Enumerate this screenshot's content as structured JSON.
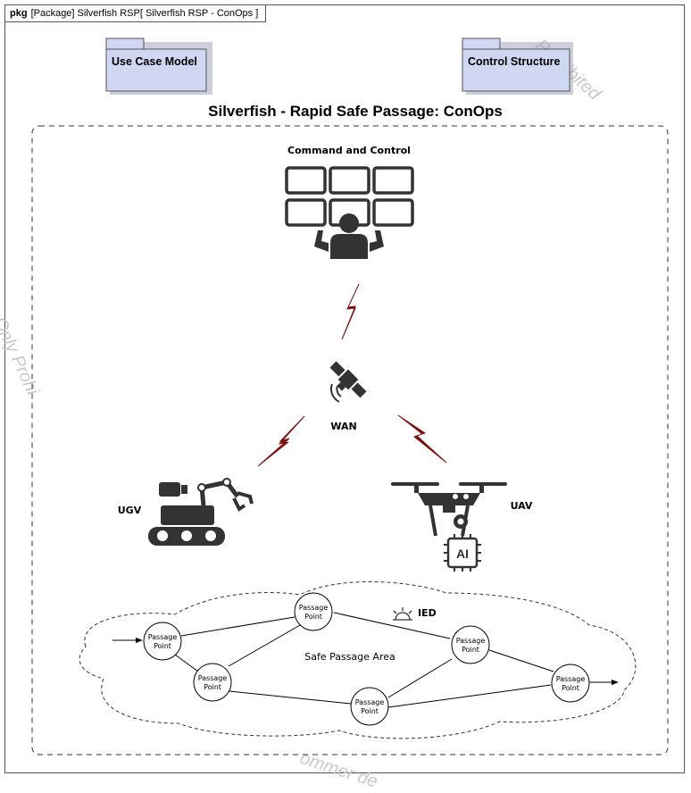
{
  "frame": {
    "keyword": "pkg",
    "label": "[Package] Silverfish RSP[ Silverfish RSP - ConOps ]"
  },
  "packages": [
    {
      "name": "Use Case Model"
    },
    {
      "name": "Control Structure"
    }
  ],
  "diagram": {
    "title": "Silverfish - Rapid Safe Passage: ConOps",
    "command_label": "Command and Control",
    "wan_label": "WAN",
    "ugv_label": "UGV",
    "uav_label": "UAV",
    "ai_label": "AI",
    "ied_label": "IED",
    "area_label": "Safe Passage Area",
    "passage_point_line1": "Passage",
    "passage_point_line2": "Point"
  },
  "watermarks": {
    "top_right": "Prohibited",
    "left": "Only  Prohi",
    "bottom": "ommer de"
  },
  "colors": {
    "icon": "#333333",
    "bolt": "#7a1010",
    "package_fill": "#cfd7f2",
    "package_stroke": "#555555"
  }
}
